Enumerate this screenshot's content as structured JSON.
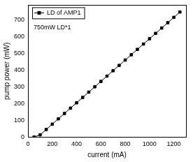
{
  "chart_data": {
    "type": "line",
    "x_label": "current (mA)",
    "y_label": "pump power (mW)",
    "annotation": "750mW LD*1",
    "x": [
      50,
      100,
      150,
      200,
      250,
      300,
      350,
      400,
      450,
      500,
      550,
      600,
      650,
      700,
      750,
      800,
      850,
      900,
      950,
      1000,
      1050,
      1100,
      1150,
      1200,
      1250
    ],
    "series": [
      {
        "name": "LD of AMP1",
        "color": "#000000",
        "marker": "square",
        "line_style": "solid",
        "values": [
          0,
          13,
          45,
          77,
          109,
          141,
          173,
          205,
          237,
          269,
          301,
          333,
          365,
          397,
          429,
          461,
          493,
          525,
          557,
          589,
          621,
          653,
          685,
          717,
          749
        ]
      }
    ],
    "xlim": [
      0,
      1300
    ],
    "xticks": [
      0,
      200,
      400,
      600,
      800,
      1000,
      1200
    ],
    "ylim": [
      0,
      790
    ],
    "yticks": [
      0,
      100,
      200,
      300,
      400,
      500,
      600,
      700
    ],
    "grid": false,
    "legend": "top-left"
  }
}
